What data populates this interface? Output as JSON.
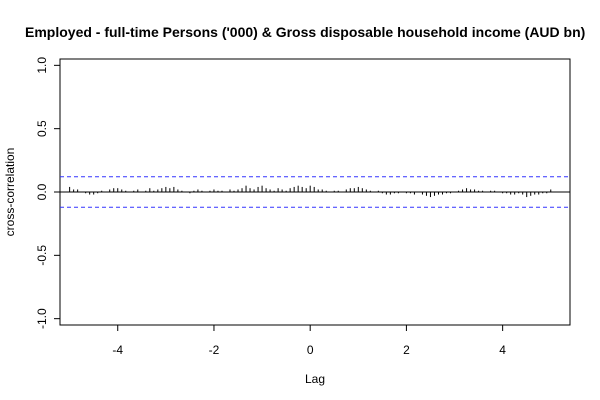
{
  "chart_data": {
    "type": "bar",
    "title": "Employed - full-time Persons ('000) & Gross disposable household income (AUD bn)",
    "xlabel": "Lag",
    "ylabel": "cross-correlation",
    "xlim": [
      -5.2,
      5.4
    ],
    "ylim": [
      -1.05,
      1.05
    ],
    "x_ticks": [
      -4,
      -2,
      0,
      2,
      4
    ],
    "y_ticks": [
      -1.0,
      -0.5,
      0.0,
      0.5,
      1.0
    ],
    "y_tick_labels": [
      "-1.0",
      "-0.5",
      "0.0",
      "0.5",
      "1.0"
    ],
    "confidence_bounds": [
      0.12,
      -0.12
    ],
    "grid": false,
    "colors": {
      "bars": "#000000",
      "zero_line": "#000000",
      "bounds": "#3333ff"
    },
    "lags": [
      -5.0,
      -4.916667,
      -4.833333,
      -4.75,
      -4.666667,
      -4.583333,
      -4.5,
      -4.416667,
      -4.333333,
      -4.25,
      -4.166667,
      -4.083333,
      -4.0,
      -3.916667,
      -3.833333,
      -3.75,
      -3.666667,
      -3.583333,
      -3.5,
      -3.416667,
      -3.333333,
      -3.25,
      -3.166667,
      -3.083333,
      -3.0,
      -2.916667,
      -2.833333,
      -2.75,
      -2.666667,
      -2.583333,
      -2.5,
      -2.416667,
      -2.333333,
      -2.25,
      -2.166667,
      -2.083333,
      -2.0,
      -1.916667,
      -1.833333,
      -1.75,
      -1.666667,
      -1.583333,
      -1.5,
      -1.416667,
      -1.333333,
      -1.25,
      -1.166667,
      -1.083333,
      -1.0,
      -0.916667,
      -0.833333,
      -0.75,
      -0.666667,
      -0.583333,
      -0.5,
      -0.416667,
      -0.333333,
      -0.25,
      -0.166667,
      -0.083333,
      0.0,
      0.083333,
      0.166667,
      0.25,
      0.333333,
      0.416667,
      0.5,
      0.583333,
      0.666667,
      0.75,
      0.833333,
      0.916667,
      1.0,
      1.083333,
      1.166667,
      1.25,
      1.333333,
      1.416667,
      1.5,
      1.583333,
      1.666667,
      1.75,
      1.833333,
      1.916667,
      2.0,
      2.083333,
      2.166667,
      2.25,
      2.333333,
      2.416667,
      2.5,
      2.583333,
      2.666667,
      2.75,
      2.833333,
      2.916667,
      3.0,
      3.083333,
      3.166667,
      3.25,
      3.333333,
      3.416667,
      3.5,
      3.583333,
      3.666667,
      3.75,
      3.833333,
      3.916667,
      4.0,
      4.083333,
      4.166667,
      4.25,
      4.333333,
      4.416667,
      4.5,
      4.583333,
      4.666667,
      4.75,
      4.833333,
      4.916667,
      5.0
    ],
    "values": [
      0.04,
      0.02,
      0.02,
      0.0,
      -0.01,
      -0.02,
      -0.02,
      -0.01,
      0.01,
      0.0,
      0.02,
      0.03,
      0.03,
      0.02,
      0.01,
      0.0,
      0.01,
      0.02,
      0.0,
      0.01,
      0.03,
      0.01,
      0.02,
      0.03,
      0.04,
      0.03,
      0.04,
      0.02,
      0.01,
      0.0,
      -0.01,
      0.01,
      0.02,
      0.01,
      0.0,
      0.01,
      0.02,
      0.01,
      0.01,
      0.0,
      0.02,
      0.01,
      0.02,
      0.03,
      0.05,
      0.03,
      0.02,
      0.04,
      0.05,
      0.03,
      0.02,
      0.01,
      0.03,
      0.02,
      0.01,
      0.03,
      0.04,
      0.05,
      0.04,
      0.03,
      0.05,
      0.04,
      0.02,
      0.02,
      0.01,
      0.0,
      0.01,
      0.01,
      0.0,
      0.02,
      0.03,
      0.03,
      0.04,
      0.03,
      0.02,
      0.01,
      0.0,
      0.01,
      -0.01,
      -0.02,
      -0.02,
      -0.01,
      -0.01,
      0.0,
      -0.01,
      -0.01,
      -0.02,
      0.0,
      -0.02,
      -0.03,
      -0.04,
      -0.03,
      -0.02,
      -0.02,
      -0.01,
      -0.01,
      0.0,
      0.01,
      0.02,
      0.03,
      0.02,
      0.02,
      0.01,
      0.01,
      0.0,
      0.01,
      0.01,
      0.0,
      -0.01,
      -0.01,
      -0.02,
      -0.02,
      -0.01,
      -0.02,
      -0.04,
      -0.03,
      -0.02,
      -0.02,
      -0.01,
      -0.01,
      0.02
    ]
  }
}
